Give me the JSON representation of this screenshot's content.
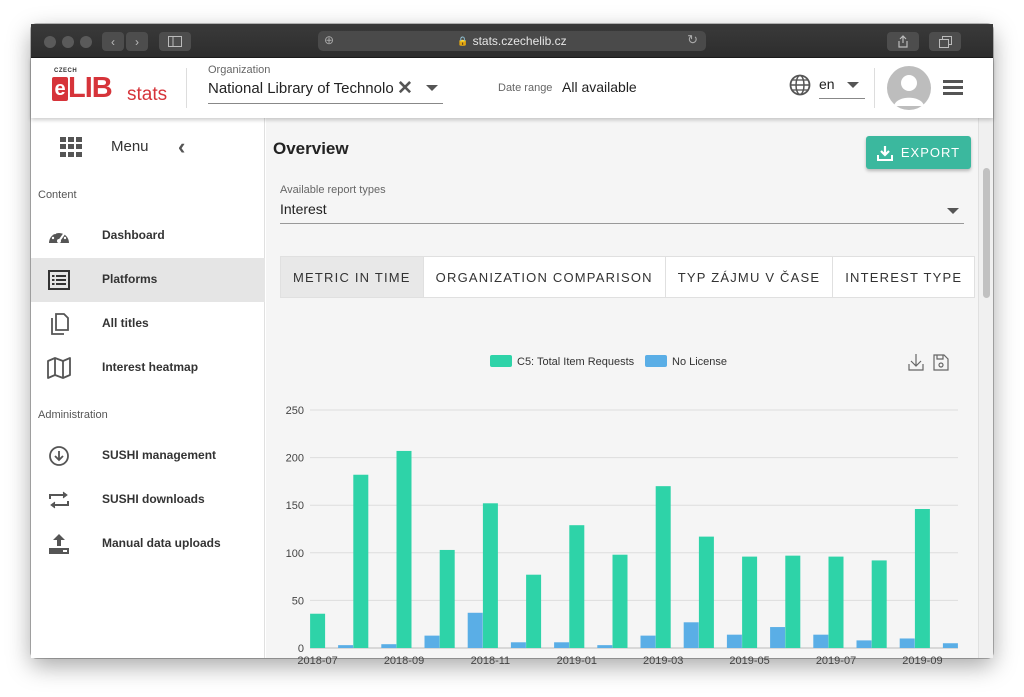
{
  "browser": {
    "url": "stats.czechelib.cz"
  },
  "logo": {
    "czech": "CZECH",
    "e": "e",
    "lib": "LIB",
    "stats": "stats"
  },
  "header": {
    "org_label": "Organization",
    "org_value": "National Library of Technolo",
    "date_label": "Date range",
    "date_value": "All available",
    "lang_value": "en"
  },
  "sidebar": {
    "menu_label": "Menu",
    "sections": [
      {
        "label": "Content"
      },
      {
        "label": "Administration"
      }
    ],
    "items": [
      {
        "label": "Dashboard",
        "icon": "dashboard-icon",
        "active": false
      },
      {
        "label": "Platforms",
        "icon": "list-icon",
        "active": true
      },
      {
        "label": "All titles",
        "icon": "copy-icon",
        "active": false
      },
      {
        "label": "Interest heatmap",
        "icon": "map-icon",
        "active": false
      },
      {
        "label": "SUSHI management",
        "icon": "download-circle-icon",
        "active": false
      },
      {
        "label": "SUSHI downloads",
        "icon": "repeat-icon",
        "active": false
      },
      {
        "label": "Manual data uploads",
        "icon": "upload-icon",
        "active": false
      }
    ]
  },
  "main": {
    "title": "Overview",
    "export_label": "EXPORT",
    "report_types_label": "Available report types",
    "report_type_value": "Interest",
    "tabs": [
      {
        "label": "METRIC IN TIME",
        "active": true
      },
      {
        "label": "ORGANIZATION COMPARISON",
        "active": false
      },
      {
        "label": "TYP ZÁJMU V ČASE",
        "active": false
      },
      {
        "label": "INTEREST TYPE",
        "active": false
      }
    ]
  },
  "colors": {
    "accent": "#3bb89e",
    "series1": "#2ed3a8",
    "series2": "#5aaee6",
    "brand_red": "#d6343a"
  },
  "chart_data": {
    "type": "bar",
    "categories": [
      "2018-07",
      "2018-08",
      "2018-09",
      "2018-10",
      "2018-11",
      "2018-12",
      "2019-01",
      "2019-02",
      "2019-03",
      "2019-04",
      "2019-05",
      "2019-06",
      "2019-07",
      "2019-08",
      "2019-09"
    ],
    "tick_labels": [
      "2018-07",
      "2018-09",
      "2018-11",
      "2019-01",
      "2019-03",
      "2019-05",
      "2019-07",
      "2019-09"
    ],
    "series": [
      {
        "name": "C5: Total Item Requests",
        "color": "#2ed3a8",
        "values": [
          36,
          182,
          207,
          103,
          152,
          77,
          129,
          98,
          170,
          117,
          96,
          97,
          96,
          92,
          146
        ]
      },
      {
        "name": "No License",
        "color": "#5aaee6",
        "values": [
          3,
          4,
          13,
          37,
          6,
          6,
          3,
          13,
          27,
          14,
          22,
          14,
          8,
          10,
          5
        ]
      }
    ],
    "y_ticks": [
      0,
      50,
      100,
      150,
      200,
      250
    ],
    "ylim": [
      0,
      250
    ],
    "grid": true,
    "legend_position": "top"
  }
}
